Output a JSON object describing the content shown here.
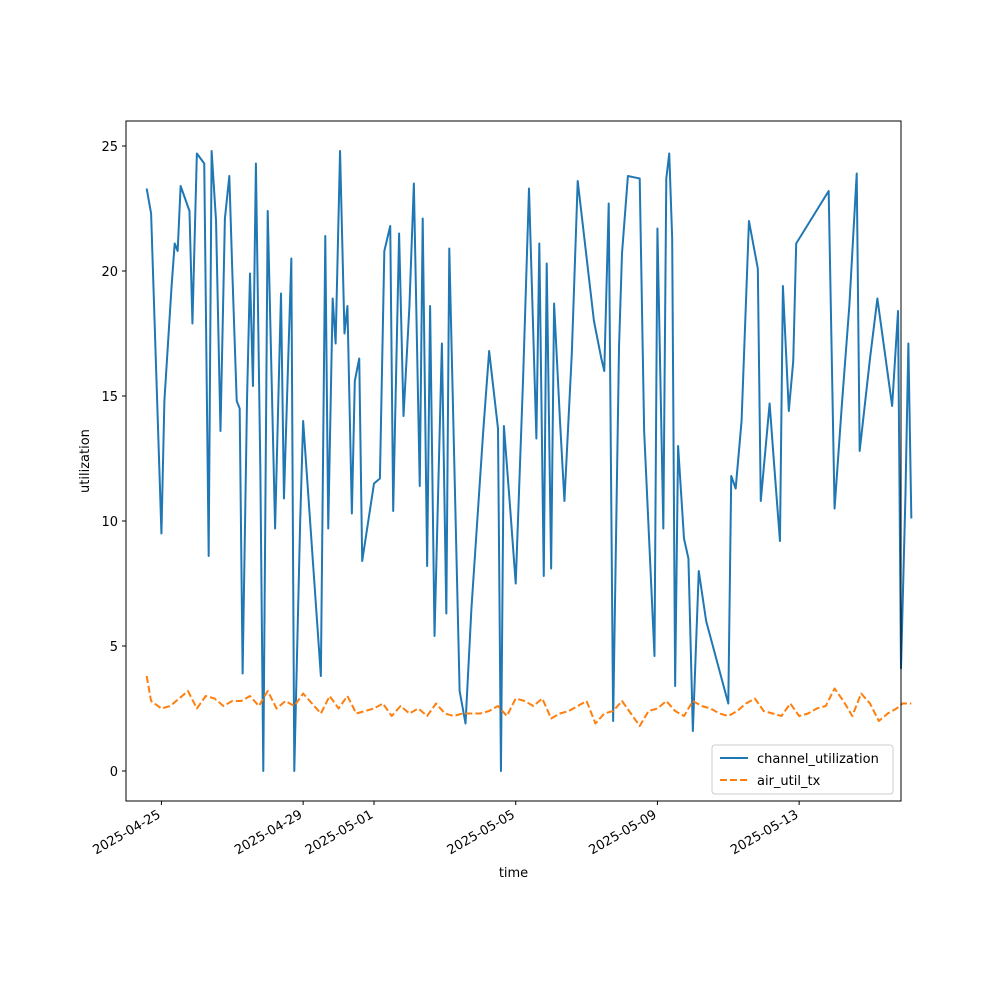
{
  "chart_data": {
    "type": "line",
    "title": "",
    "xlabel": "time",
    "ylabel": "utilization",
    "x_type": "time",
    "xlim": [
      "2025-04-24T00:00",
      "2025-05-15T21:00"
    ],
    "ylim": [
      -1.2,
      26.0
    ],
    "x_ticks": [
      "2025-04-25",
      "2025-04-29",
      "2025-05-01",
      "2025-05-05",
      "2025-05-09",
      "2025-05-13"
    ],
    "y_ticks": [
      0,
      5,
      10,
      15,
      20,
      25
    ],
    "grid": false,
    "legend_position": "lower-right",
    "series": [
      {
        "name": "channel_utilization",
        "color": "#1f77b4",
        "dash": "solid",
        "points": [
          [
            "2025-04-24T14:00",
            23.3
          ],
          [
            "2025-04-24T17:00",
            22.3
          ],
          [
            "2025-04-25T00:00",
            9.5
          ],
          [
            "2025-04-25T02:00",
            14.8
          ],
          [
            "2025-04-25T07:00",
            19.5
          ],
          [
            "2025-04-25T09:00",
            21.1
          ],
          [
            "2025-04-25T11:00",
            20.8
          ],
          [
            "2025-04-25T13:00",
            23.4
          ],
          [
            "2025-04-25T19:00",
            22.4
          ],
          [
            "2025-04-25T21:00",
            17.9
          ],
          [
            "2025-04-26T00:00",
            24.7
          ],
          [
            "2025-04-26T05:00",
            24.3
          ],
          [
            "2025-04-26T08:00",
            8.6
          ],
          [
            "2025-04-26T10:00",
            24.8
          ],
          [
            "2025-04-26T13:00",
            22.0
          ],
          [
            "2025-04-26T16:00",
            13.6
          ],
          [
            "2025-04-26T19:00",
            22.1
          ],
          [
            "2025-04-26T22:00",
            23.8
          ],
          [
            "2025-04-27T00:00",
            20.0
          ],
          [
            "2025-04-27T03:00",
            14.8
          ],
          [
            "2025-04-27T05:00",
            14.5
          ],
          [
            "2025-04-27T07:00",
            3.9
          ],
          [
            "2025-04-27T10:00",
            14.9
          ],
          [
            "2025-04-27T12:00",
            19.9
          ],
          [
            "2025-04-27T14:00",
            15.4
          ],
          [
            "2025-04-27T16:00",
            24.3
          ],
          [
            "2025-04-27T19:00",
            12.1
          ],
          [
            "2025-04-27T21:00",
            0.0
          ],
          [
            "2025-04-28T00:00",
            22.4
          ],
          [
            "2025-04-28T05:00",
            9.7
          ],
          [
            "2025-04-28T09:00",
            19.1
          ],
          [
            "2025-04-28T11:00",
            10.9
          ],
          [
            "2025-04-28T16:00",
            20.5
          ],
          [
            "2025-04-28T18:00",
            0.0
          ],
          [
            "2025-04-28T22:00",
            10.0
          ],
          [
            "2025-04-29T00:00",
            14.0
          ],
          [
            "2025-04-29T12:00",
            3.8
          ],
          [
            "2025-04-29T15:00",
            21.4
          ],
          [
            "2025-04-29T17:00",
            9.7
          ],
          [
            "2025-04-29T20:00",
            18.9
          ],
          [
            "2025-04-29T22:00",
            17.1
          ],
          [
            "2025-04-30T01:00",
            24.8
          ],
          [
            "2025-04-30T04:00",
            17.5
          ],
          [
            "2025-04-30T06:00",
            18.6
          ],
          [
            "2025-04-30T09:00",
            10.3
          ],
          [
            "2025-04-30T11:00",
            15.6
          ],
          [
            "2025-04-30T14:00",
            16.5
          ],
          [
            "2025-04-30T16:00",
            8.4
          ],
          [
            "2025-05-01T00:00",
            11.5
          ],
          [
            "2025-05-01T04:00",
            11.7
          ],
          [
            "2025-05-01T07:00",
            20.8
          ],
          [
            "2025-05-01T11:00",
            21.8
          ],
          [
            "2025-05-01T13:00",
            10.4
          ],
          [
            "2025-05-01T17:00",
            21.5
          ],
          [
            "2025-05-01T20:00",
            14.2
          ],
          [
            "2025-05-02T00:00",
            18.6
          ],
          [
            "2025-05-02T03:00",
            23.5
          ],
          [
            "2025-05-02T07:00",
            11.4
          ],
          [
            "2025-05-02T09:00",
            22.1
          ],
          [
            "2025-05-02T12:00",
            8.2
          ],
          [
            "2025-05-02T14:00",
            18.6
          ],
          [
            "2025-05-02T17:00",
            5.4
          ],
          [
            "2025-05-02T22:00",
            17.1
          ],
          [
            "2025-05-03T01:00",
            6.3
          ],
          [
            "2025-05-03T03:00",
            20.9
          ],
          [
            "2025-05-03T10:00",
            3.2
          ],
          [
            "2025-05-03T14:00",
            1.9
          ],
          [
            "2025-05-03T18:00",
            6.5
          ],
          [
            "2025-05-04T02:00",
            13.6
          ],
          [
            "2025-05-04T06:00",
            16.8
          ],
          [
            "2025-05-04T12:00",
            13.7
          ],
          [
            "2025-05-04T14:00",
            0.0
          ],
          [
            "2025-05-04T16:00",
            13.8
          ],
          [
            "2025-05-04T20:00",
            10.7
          ],
          [
            "2025-05-05T00:00",
            7.5
          ],
          [
            "2025-05-05T05:00",
            15.7
          ],
          [
            "2025-05-05T09:00",
            23.3
          ],
          [
            "2025-05-05T14:00",
            13.3
          ],
          [
            "2025-05-05T16:00",
            21.1
          ],
          [
            "2025-05-05T19:00",
            7.8
          ],
          [
            "2025-05-05T21:00",
            20.3
          ],
          [
            "2025-05-06T00:00",
            8.1
          ],
          [
            "2025-05-06T02:00",
            18.7
          ],
          [
            "2025-05-06T06:00",
            14.0
          ],
          [
            "2025-05-06T09:00",
            10.8
          ],
          [
            "2025-05-06T14:00",
            16.7
          ],
          [
            "2025-05-06T18:00",
            23.6
          ],
          [
            "2025-05-07T05:00",
            18.0
          ],
          [
            "2025-05-07T10:00",
            16.5
          ],
          [
            "2025-05-07T12:00",
            16.0
          ],
          [
            "2025-05-07T15:00",
            22.7
          ],
          [
            "2025-05-07T18:00",
            2.0
          ],
          [
            "2025-05-07T22:00",
            17.0
          ],
          [
            "2025-05-08T00:00",
            20.7
          ],
          [
            "2025-05-08T04:00",
            23.8
          ],
          [
            "2025-05-08T12:00",
            23.7
          ],
          [
            "2025-05-08T15:00",
            13.6
          ],
          [
            "2025-05-08T22:00",
            4.6
          ],
          [
            "2025-05-09T00:00",
            21.7
          ],
          [
            "2025-05-09T04:00",
            9.7
          ],
          [
            "2025-05-09T06:00",
            23.7
          ],
          [
            "2025-05-09T08:00",
            24.7
          ],
          [
            "2025-05-09T10:00",
            21.3
          ],
          [
            "2025-05-09T12:00",
            3.4
          ],
          [
            "2025-05-09T14:00",
            13.0
          ],
          [
            "2025-05-09T18:00",
            9.3
          ],
          [
            "2025-05-09T21:00",
            8.5
          ],
          [
            "2025-05-10T00:00",
            1.6
          ],
          [
            "2025-05-10T04:00",
            8.0
          ],
          [
            "2025-05-10T09:00",
            6.0
          ],
          [
            "2025-05-11T00:00",
            2.7
          ],
          [
            "2025-05-11T02:00",
            11.8
          ],
          [
            "2025-05-11T05:00",
            11.3
          ],
          [
            "2025-05-11T09:00",
            14.0
          ],
          [
            "2025-05-11T12:00",
            18.8
          ],
          [
            "2025-05-11T14:00",
            22.0
          ],
          [
            "2025-05-11T20:00",
            20.1
          ],
          [
            "2025-05-11T22:00",
            10.8
          ],
          [
            "2025-05-12T04:00",
            14.7
          ],
          [
            "2025-05-12T07:00",
            12.3
          ],
          [
            "2025-05-12T11:00",
            9.2
          ],
          [
            "2025-05-12T13:00",
            19.4
          ],
          [
            "2025-05-12T17:00",
            14.4
          ],
          [
            "2025-05-12T20:00",
            16.4
          ],
          [
            "2025-05-12T22:00",
            21.1
          ],
          [
            "2025-05-13T20:00",
            23.2
          ],
          [
            "2025-05-14T00:00",
            10.5
          ],
          [
            "2025-05-14T05:00",
            14.7
          ],
          [
            "2025-05-14T10:00",
            18.6
          ],
          [
            "2025-05-14T15:00",
            23.9
          ],
          [
            "2025-05-14T17:00",
            12.8
          ],
          [
            "2025-05-15T00:00",
            16.5
          ],
          [
            "2025-05-15T05:00",
            18.9
          ],
          [
            "2025-05-15T15:00",
            14.6
          ],
          [
            "2025-05-15T19:00",
            18.4
          ],
          [
            "2025-05-15T21:00",
            4.1
          ],
          [
            "2025-05-16T00:00",
            11.0
          ],
          [
            "2025-05-16T02:00",
            17.1
          ],
          [
            "2025-05-16T04:00",
            10.1
          ]
        ]
      },
      {
        "name": "air_util_tx",
        "color": "#ff7f0e",
        "dash": "dashed",
        "points": [
          [
            "2025-04-24T14:00",
            3.8
          ],
          [
            "2025-04-24T17:00",
            2.8
          ],
          [
            "2025-04-25T00:00",
            2.5
          ],
          [
            "2025-04-25T06:00",
            2.6
          ],
          [
            "2025-04-25T12:00",
            2.9
          ],
          [
            "2025-04-25T18:00",
            3.2
          ],
          [
            "2025-04-26T00:00",
            2.5
          ],
          [
            "2025-04-26T06:00",
            3.0
          ],
          [
            "2025-04-26T12:00",
            2.9
          ],
          [
            "2025-04-26T18:00",
            2.6
          ],
          [
            "2025-04-27T00:00",
            2.8
          ],
          [
            "2025-04-27T06:00",
            2.8
          ],
          [
            "2025-04-27T12:00",
            3.0
          ],
          [
            "2025-04-27T18:00",
            2.6
          ],
          [
            "2025-04-28T00:00",
            3.2
          ],
          [
            "2025-04-28T06:00",
            2.5
          ],
          [
            "2025-04-28T12:00",
            2.8
          ],
          [
            "2025-04-28T18:00",
            2.6
          ],
          [
            "2025-04-29T00:00",
            3.1
          ],
          [
            "2025-04-29T06:00",
            2.7
          ],
          [
            "2025-04-29T12:00",
            2.3
          ],
          [
            "2025-04-29T18:00",
            3.0
          ],
          [
            "2025-04-30T00:00",
            2.5
          ],
          [
            "2025-04-30T06:00",
            3.0
          ],
          [
            "2025-04-30T12:00",
            2.3
          ],
          [
            "2025-04-30T18:00",
            2.4
          ],
          [
            "2025-05-01T00:00",
            2.5
          ],
          [
            "2025-05-01T06:00",
            2.7
          ],
          [
            "2025-05-01T12:00",
            2.2
          ],
          [
            "2025-05-01T18:00",
            2.6
          ],
          [
            "2025-05-02T00:00",
            2.3
          ],
          [
            "2025-05-02T06:00",
            2.5
          ],
          [
            "2025-05-02T12:00",
            2.2
          ],
          [
            "2025-05-02T18:00",
            2.7
          ],
          [
            "2025-05-03T00:00",
            2.3
          ],
          [
            "2025-05-03T06:00",
            2.2
          ],
          [
            "2025-05-03T12:00",
            2.3
          ],
          [
            "2025-05-03T18:00",
            2.3
          ],
          [
            "2025-05-04T00:00",
            2.3
          ],
          [
            "2025-05-04T06:00",
            2.4
          ],
          [
            "2025-05-04T12:00",
            2.6
          ],
          [
            "2025-05-04T18:00",
            2.2
          ],
          [
            "2025-05-05T00:00",
            2.9
          ],
          [
            "2025-05-05T06:00",
            2.8
          ],
          [
            "2025-05-05T12:00",
            2.6
          ],
          [
            "2025-05-05T18:00",
            2.9
          ],
          [
            "2025-05-06T00:00",
            2.1
          ],
          [
            "2025-05-06T06:00",
            2.3
          ],
          [
            "2025-05-06T12:00",
            2.4
          ],
          [
            "2025-05-06T18:00",
            2.6
          ],
          [
            "2025-05-07T00:00",
            2.8
          ],
          [
            "2025-05-07T06:00",
            1.9
          ],
          [
            "2025-05-07T12:00",
            2.3
          ],
          [
            "2025-05-07T18:00",
            2.4
          ],
          [
            "2025-05-08T00:00",
            2.8
          ],
          [
            "2025-05-08T06:00",
            2.3
          ],
          [
            "2025-05-08T12:00",
            1.8
          ],
          [
            "2025-05-08T18:00",
            2.4
          ],
          [
            "2025-05-09T00:00",
            2.5
          ],
          [
            "2025-05-09T06:00",
            2.8
          ],
          [
            "2025-05-09T12:00",
            2.4
          ],
          [
            "2025-05-09T18:00",
            2.2
          ],
          [
            "2025-05-10T00:00",
            2.8
          ],
          [
            "2025-05-10T06:00",
            2.6
          ],
          [
            "2025-05-10T12:00",
            2.5
          ],
          [
            "2025-05-10T18:00",
            2.3
          ],
          [
            "2025-05-11T00:00",
            2.2
          ],
          [
            "2025-05-11T06:00",
            2.4
          ],
          [
            "2025-05-11T12:00",
            2.7
          ],
          [
            "2025-05-11T18:00",
            2.9
          ],
          [
            "2025-05-12T00:00",
            2.4
          ],
          [
            "2025-05-12T06:00",
            2.3
          ],
          [
            "2025-05-12T12:00",
            2.2
          ],
          [
            "2025-05-12T18:00",
            2.7
          ],
          [
            "2025-05-13T00:00",
            2.2
          ],
          [
            "2025-05-13T06:00",
            2.3
          ],
          [
            "2025-05-13T12:00",
            2.5
          ],
          [
            "2025-05-13T18:00",
            2.6
          ],
          [
            "2025-05-14T00:00",
            3.3
          ],
          [
            "2025-05-14T06:00",
            2.8
          ],
          [
            "2025-05-14T12:00",
            2.2
          ],
          [
            "2025-05-14T18:00",
            3.1
          ],
          [
            "2025-05-15T00:00",
            2.7
          ],
          [
            "2025-05-15T06:00",
            2.0
          ],
          [
            "2025-05-15T12:00",
            2.3
          ],
          [
            "2025-05-15T18:00",
            2.5
          ],
          [
            "2025-05-15T22:00",
            2.7
          ],
          [
            "2025-05-16T04:00",
            2.7
          ]
        ]
      }
    ]
  }
}
